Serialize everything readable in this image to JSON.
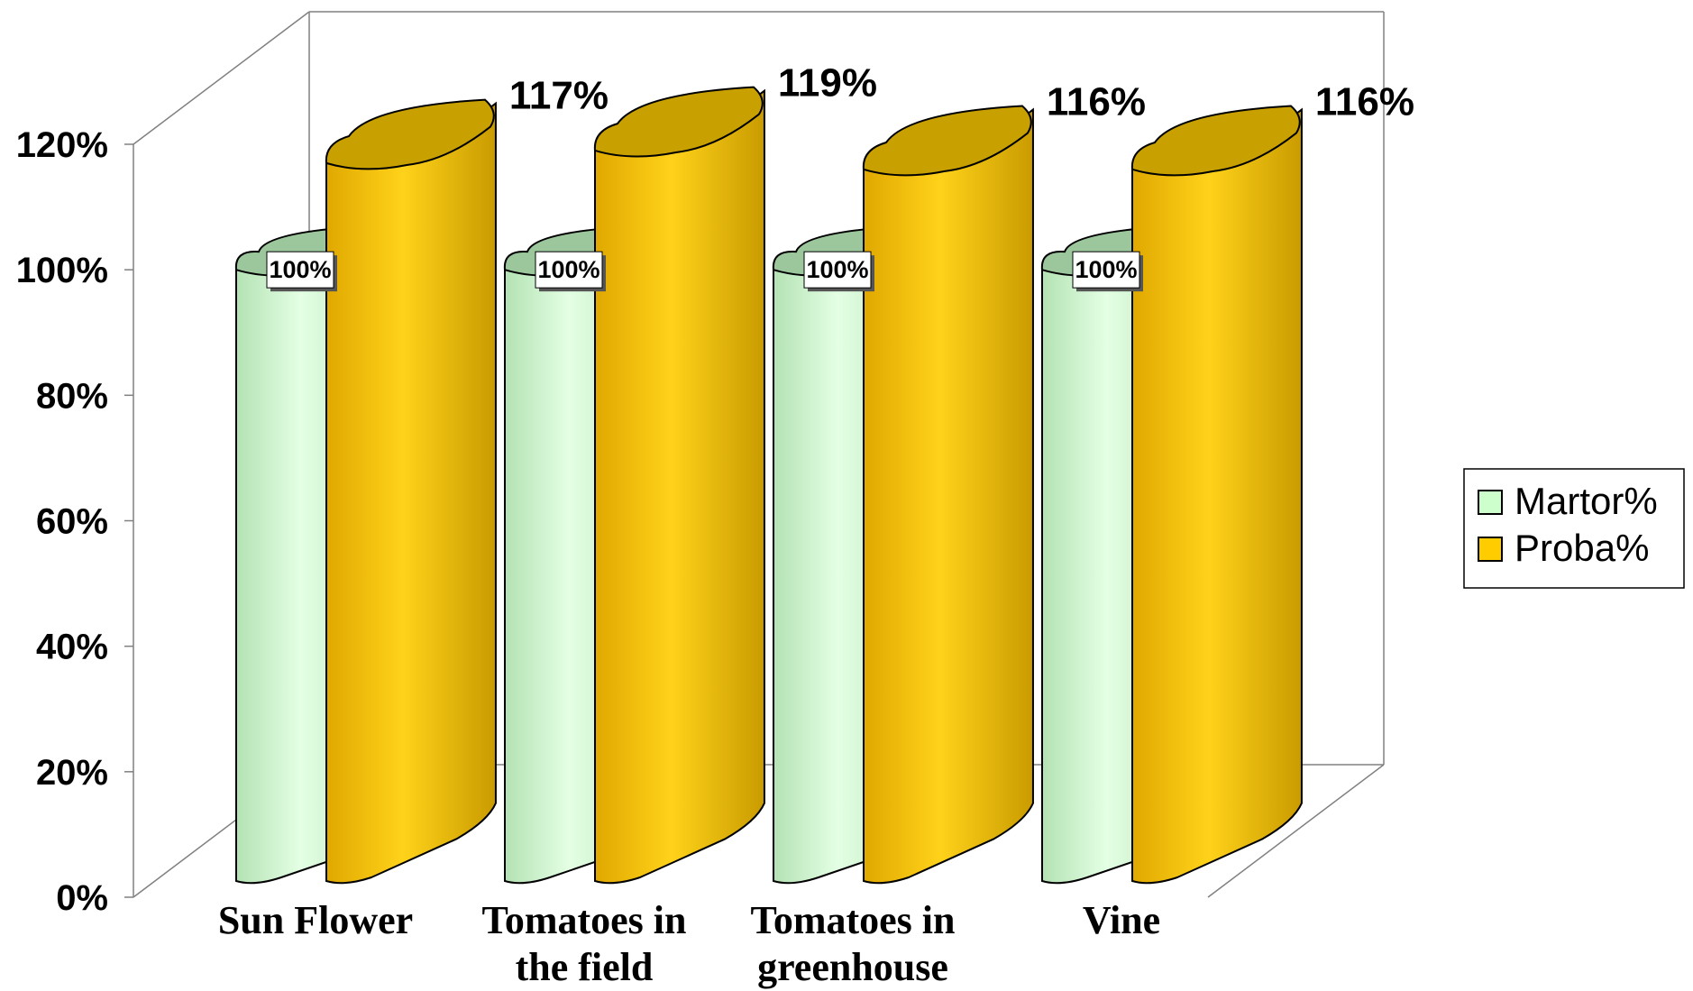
{
  "chart_data": {
    "type": "bar",
    "style": "3d-cylinder",
    "title": "",
    "xlabel": "",
    "ylabel": "",
    "categories": [
      "Sun Flower",
      "Tomatoes in the field",
      "Tomatoes in greenhouse",
      "Vine"
    ],
    "category_lines": [
      [
        "Sun Flower"
      ],
      [
        "Tomatoes in",
        "the field"
      ],
      [
        "Tomatoes in",
        "greenhouse"
      ],
      [
        "Vine"
      ]
    ],
    "series": [
      {
        "name": "Martor%",
        "values": [
          100,
          100,
          100,
          100
        ],
        "labels": [
          "100%",
          "100%",
          "100%",
          "100%"
        ],
        "color": "#ccffcc",
        "shade_color": "#9cc79c"
      },
      {
        "name": "Proba%",
        "values": [
          117,
          119,
          116,
          116
        ],
        "labels": [
          "117%",
          "119%",
          "116%",
          "116%"
        ],
        "color": "#ffcc00",
        "shade_color": "#c8a000"
      }
    ],
    "ylim": [
      0,
      120
    ],
    "yticks": [
      0,
      20,
      40,
      60,
      80,
      100,
      120
    ],
    "ytick_labels": [
      "0%",
      "20%",
      "40%",
      "60%",
      "80%",
      "100%",
      "120%"
    ],
    "grid": false,
    "legend": {
      "position": "right",
      "entries": [
        "Martor%",
        "Proba%"
      ]
    }
  }
}
